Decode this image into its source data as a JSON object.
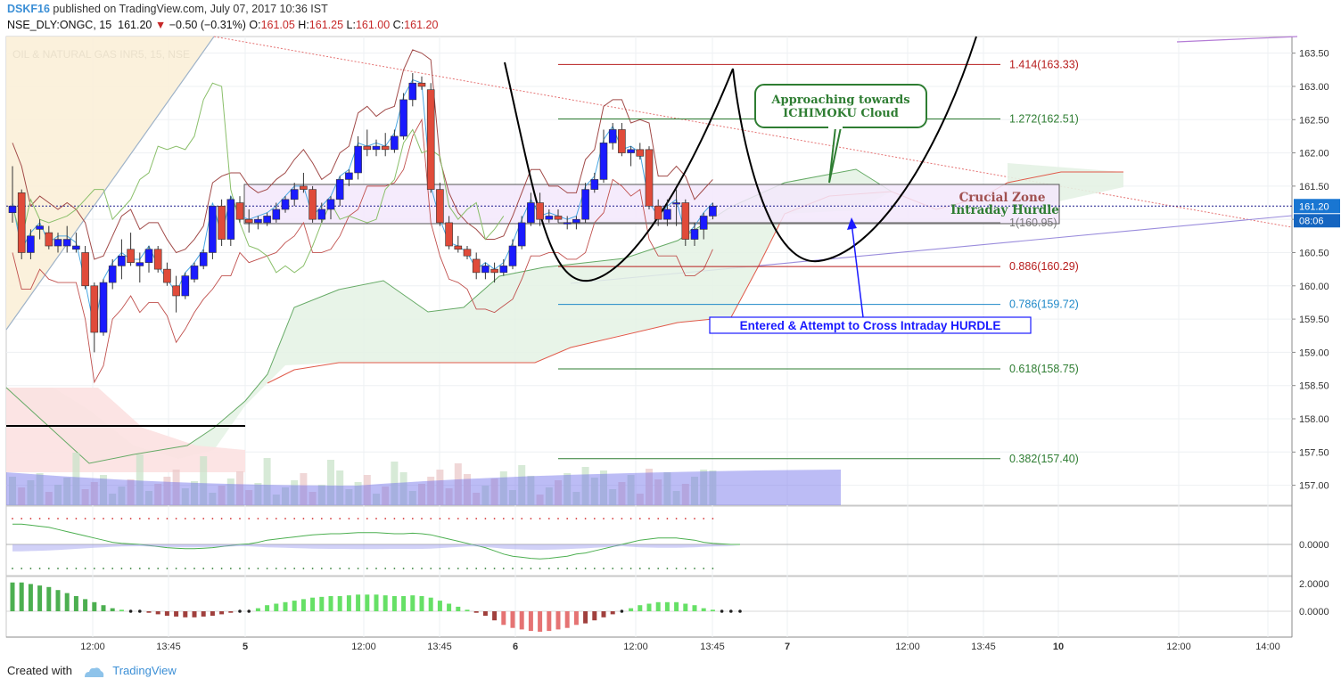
{
  "header": {
    "user": "DSKF16",
    "published": "published on TradingView.com, July 07, 2017 10:36 IST",
    "symbol": "NSE_DLY:ONGC, 15",
    "last": "161.20",
    "change_arrow": "▼",
    "change": "−0.50 (−0.31%)",
    "open_label": "O:",
    "open": "161.05",
    "high_label": "H:",
    "high": "161.25",
    "low_label": "L:",
    "low": "161.00",
    "close_label": "C:",
    "close": "161.20"
  },
  "footer": {
    "created_with": "Created with",
    "brand": "TradingView"
  },
  "colors": {
    "bull": "#1a1aff",
    "bear": "#e04b3a",
    "kumo_bull": "#e3f1e3",
    "kumo_bear": "#fbe0e0",
    "fib_red": "#b71c1c",
    "fib_green": "#2e7d32",
    "fib_blue": "#1e88c8",
    "fib_gray": "#777777",
    "last_price_bg": "#1976d2",
    "countdown_bg": "#1565c0"
  },
  "chart_data": {
    "type": "candlestick",
    "title": "OIL & NATURAL GAS INR5, 15, NSE",
    "y_axis": {
      "min": 156.7,
      "max": 163.75,
      "ticks": [
        "163.50",
        "163.00",
        "162.50",
        "162.00",
        "161.50",
        "161.00",
        "160.50",
        "160.00",
        "159.50",
        "159.00",
        "158.50",
        "158.00",
        "157.50",
        "157.00"
      ]
    },
    "x_axis": {
      "ticks": [
        "12:00",
        "13:45",
        "5",
        "12:00",
        "13:45",
        "6",
        "12:00",
        "13:45",
        "7",
        "12:00",
        "13:45",
        "10",
        "12:00",
        "14:00"
      ]
    },
    "last_price": "161.20",
    "countdown": "08:06",
    "candles": [
      [
        161.1,
        161.8,
        160.95,
        161.2
      ],
      [
        161.4,
        161.45,
        160.4,
        160.5
      ],
      [
        160.5,
        160.85,
        160.4,
        160.75
      ],
      [
        160.85,
        161.0,
        160.7,
        160.9
      ],
      [
        160.8,
        160.9,
        160.55,
        160.6
      ],
      [
        160.6,
        160.8,
        160.5,
        160.7
      ],
      [
        160.6,
        160.9,
        160.5,
        160.7
      ],
      [
        160.55,
        160.8,
        160.5,
        160.6
      ],
      [
        160.5,
        160.6,
        159.95,
        160.0
      ],
      [
        160.0,
        160.05,
        159.0,
        159.3
      ],
      [
        159.3,
        160.1,
        159.25,
        160.05
      ],
      [
        160.05,
        160.4,
        159.95,
        160.3
      ],
      [
        160.3,
        160.7,
        160.1,
        160.45
      ],
      [
        160.55,
        160.8,
        160.3,
        160.35
      ],
      [
        160.3,
        160.5,
        160.05,
        160.35
      ],
      [
        160.35,
        160.6,
        160.2,
        160.55
      ],
      [
        160.55,
        160.6,
        160.2,
        160.25
      ],
      [
        160.25,
        160.35,
        160.0,
        160.05
      ],
      [
        160.0,
        160.15,
        159.6,
        159.85
      ],
      [
        159.85,
        160.2,
        159.8,
        160.15
      ],
      [
        160.1,
        160.35,
        160.05,
        160.3
      ],
      [
        160.3,
        160.55,
        160.25,
        160.5
      ],
      [
        160.5,
        161.2,
        160.4,
        161.2
      ],
      [
        161.2,
        161.3,
        160.6,
        160.7
      ],
      [
        160.7,
        161.35,
        160.6,
        161.3
      ],
      [
        161.25,
        161.35,
        160.95,
        161.0
      ],
      [
        161.0,
        161.15,
        160.8,
        160.95
      ],
      [
        160.95,
        161.05,
        160.85,
        161.0
      ],
      [
        160.95,
        161.1,
        160.9,
        161.05
      ],
      [
        161.0,
        161.25,
        160.95,
        161.15
      ],
      [
        161.15,
        161.35,
        161.1,
        161.3
      ],
      [
        161.3,
        161.55,
        161.2,
        161.45
      ],
      [
        161.5,
        161.7,
        161.4,
        161.45
      ],
      [
        161.45,
        161.5,
        160.95,
        161.0
      ],
      [
        161.0,
        161.25,
        160.95,
        161.15
      ],
      [
        161.15,
        161.35,
        161.0,
        161.3
      ],
      [
        161.3,
        161.65,
        161.2,
        161.6
      ],
      [
        161.6,
        161.75,
        161.5,
        161.7
      ],
      [
        161.7,
        162.25,
        161.6,
        162.1
      ],
      [
        162.1,
        162.35,
        161.95,
        162.05
      ],
      [
        162.05,
        162.2,
        161.95,
        162.1
      ],
      [
        162.1,
        162.3,
        161.95,
        162.05
      ],
      [
        162.05,
        162.35,
        162.0,
        162.25
      ],
      [
        162.25,
        162.9,
        162.2,
        162.8
      ],
      [
        162.8,
        163.2,
        162.7,
        163.05
      ],
      [
        163.05,
        163.15,
        162.95,
        163.0
      ],
      [
        162.95,
        163.05,
        161.4,
        161.45
      ],
      [
        161.45,
        161.55,
        160.9,
        160.95
      ],
      [
        160.95,
        161.05,
        160.55,
        160.6
      ],
      [
        160.6,
        160.75,
        160.5,
        160.55
      ],
      [
        160.55,
        160.6,
        160.4,
        160.45
      ],
      [
        160.4,
        160.5,
        160.1,
        160.2
      ],
      [
        160.2,
        160.35,
        160.1,
        160.3
      ],
      [
        160.25,
        160.35,
        160.05,
        160.2
      ],
      [
        160.2,
        160.4,
        160.15,
        160.3
      ],
      [
        160.3,
        160.7,
        160.25,
        160.6
      ],
      [
        160.6,
        161.05,
        160.55,
        160.95
      ],
      [
        160.95,
        161.4,
        160.9,
        161.25
      ],
      [
        161.25,
        161.4,
        160.9,
        161.0
      ],
      [
        161.0,
        161.15,
        160.95,
        161.05
      ],
      [
        161.05,
        161.15,
        160.95,
        161.0
      ],
      [
        160.95,
        161.05,
        160.85,
        160.95
      ],
      [
        160.95,
        161.05,
        160.85,
        161.0
      ],
      [
        161.0,
        161.55,
        160.95,
        161.45
      ],
      [
        161.45,
        161.7,
        161.4,
        161.6
      ],
      [
        161.6,
        162.35,
        161.55,
        162.15
      ],
      [
        162.15,
        162.45,
        162.05,
        162.35
      ],
      [
        162.35,
        162.45,
        161.95,
        162.0
      ],
      [
        162.0,
        162.1,
        161.8,
        162.05
      ],
      [
        162.05,
        162.15,
        161.9,
        161.95
      ],
      [
        162.05,
        162.1,
        161.15,
        161.2
      ],
      [
        161.2,
        161.3,
        160.9,
        161.0
      ],
      [
        161.0,
        161.3,
        160.9,
        161.15
      ],
      [
        161.25,
        161.45,
        160.9,
        161.25
      ],
      [
        161.25,
        161.3,
        160.6,
        160.7
      ],
      [
        160.7,
        160.95,
        160.6,
        160.85
      ],
      [
        160.85,
        161.1,
        160.7,
        161.05
      ],
      [
        161.05,
        161.25,
        161.0,
        161.2
      ]
    ],
    "fibonacci": [
      {
        "label": "1.414(163.33)",
        "value": 163.33,
        "color": "red"
      },
      {
        "label": "1.272(162.51)",
        "value": 162.51,
        "color": "green"
      },
      {
        "label": "1(160.95)",
        "value": 160.95,
        "color": "gray"
      },
      {
        "label": "0.886(160.29)",
        "value": 160.29,
        "color": "red"
      },
      {
        "label": "0.786(159.72)",
        "value": 159.72,
        "color": "blue"
      },
      {
        "label": "0.618(158.75)",
        "value": 158.75,
        "color": "green"
      },
      {
        "label": "0.382(157.40)",
        "value": 157.4,
        "color": "green"
      }
    ],
    "annotations": {
      "ichimoku": "Approaching towards ICHIMOKU Cloud",
      "zone_title": "Crucial Zone",
      "zone_sub": "Intraday Hurdle",
      "entered": "Entered & Attempt to Cross Intraday HURDLE"
    },
    "oscillator_ticks": [
      "0.0000"
    ],
    "histogram_ticks": [
      "2.0000",
      "0.0000"
    ],
    "histogram": [
      1.9,
      1.9,
      1.8,
      1.7,
      1.6,
      1.4,
      1.2,
      1.0,
      0.8,
      0.6,
      0.4,
      0.2,
      0.1,
      0.05,
      0.0,
      -0.1,
      -0.2,
      -0.3,
      -0.35,
      -0.4,
      -0.4,
      -0.35,
      -0.3,
      -0.2,
      -0.1,
      0.0,
      0.05,
      0.2,
      0.4,
      0.5,
      0.6,
      0.7,
      0.8,
      0.9,
      0.95,
      1.0,
      1.0,
      1.05,
      1.1,
      1.1,
      1.1,
      1.05,
      1.0,
      1.0,
      1.05,
      1.0,
      0.9,
      0.7,
      0.5,
      0.3,
      0.1,
      -0.1,
      -0.3,
      -0.6,
      -0.9,
      -1.1,
      -1.2,
      -1.3,
      -1.35,
      -1.3,
      -1.2,
      -1.1,
      -0.9,
      -0.8,
      -0.6,
      -0.4,
      -0.2,
      0.0,
      0.2,
      0.4,
      0.5,
      0.6,
      0.6,
      0.6,
      0.5,
      0.4,
      0.2,
      0.1,
      0.05,
      0.0,
      0.0
    ]
  }
}
